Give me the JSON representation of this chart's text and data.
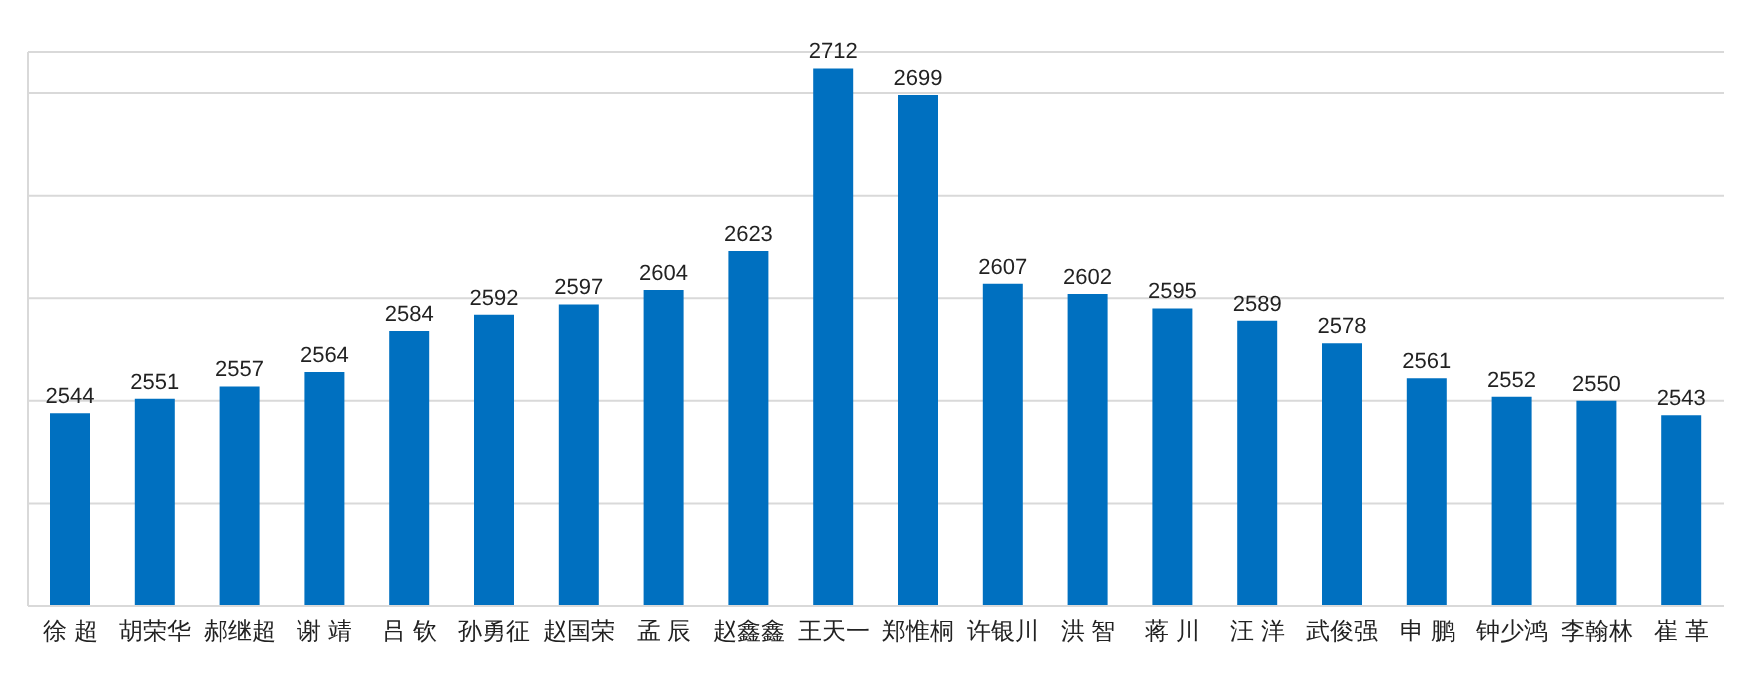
{
  "chart_data": {
    "type": "bar",
    "categories": [
      "徐 超",
      "胡荣华",
      "郝继超",
      "谢 靖",
      "吕 钦",
      "孙勇征",
      "赵国荣",
      "孟 辰",
      "赵鑫鑫",
      "王天一",
      "郑惟桐",
      "许银川",
      "洪 智",
      "蒋 川",
      "汪 洋",
      "武俊强",
      "申 鹏",
      "钟少鸿",
      "李翰林",
      "崔 革"
    ],
    "values": [
      2544,
      2551,
      2557,
      2564,
      2584,
      2592,
      2597,
      2604,
      2623,
      2712,
      2699,
      2607,
      2602,
      2595,
      2589,
      2578,
      2561,
      2552,
      2550,
      2543
    ],
    "color": "#0070c0",
    "ylim": [
      2450,
      2720
    ],
    "yticks": [
      {
        "value": 2450,
        "label": null
      },
      {
        "value": 2500,
        "label": null
      },
      {
        "value": 2550,
        "label": null
      },
      {
        "value": 2600,
        "label": null
      },
      {
        "value": 2650,
        "label": null
      },
      {
        "value": 2700,
        "label": null
      }
    ],
    "tick_labels": "x",
    "grid": "y",
    "data_labels": true
  }
}
